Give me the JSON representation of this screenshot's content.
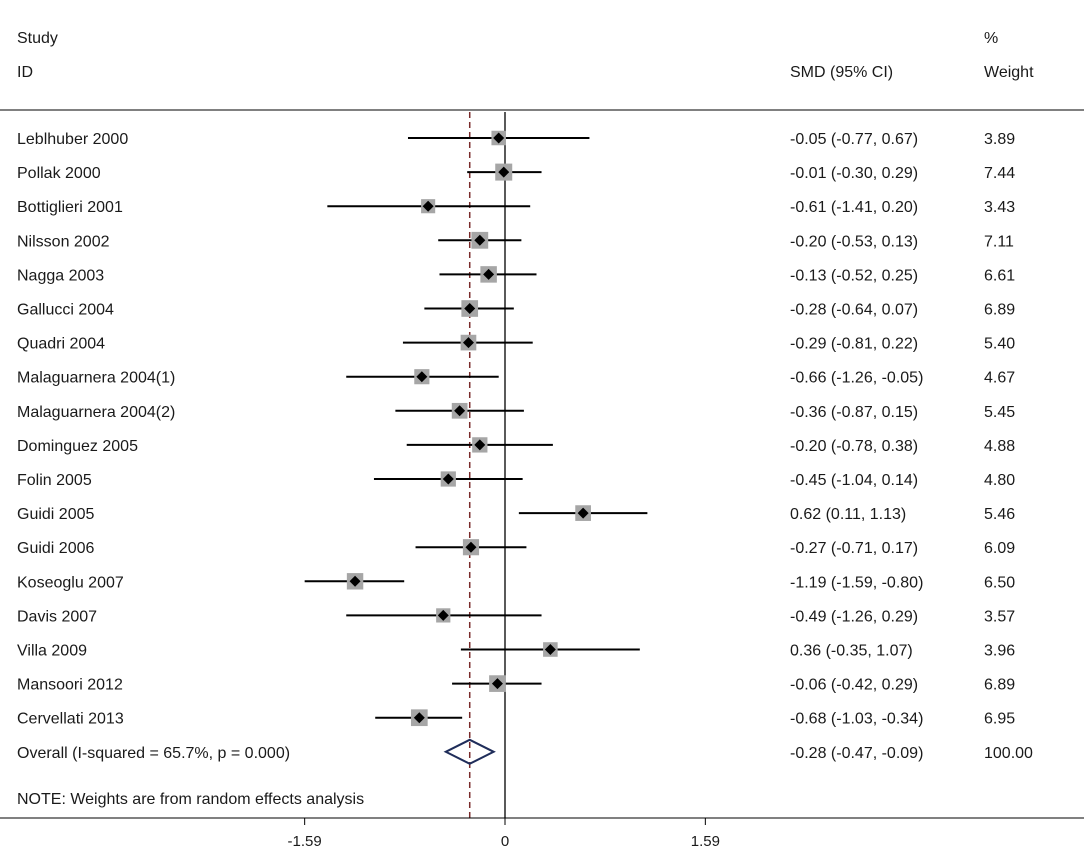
{
  "chart_data": {
    "type": "forest",
    "columns": {
      "study_line1": "Study",
      "study_line2": "ID",
      "effect": "SMD (95% CI)",
      "weight_line1": "%",
      "weight_line2": "Weight"
    },
    "studies": [
      {
        "name": "Leblhuber 2000",
        "smd": -0.05,
        "lo": -0.77,
        "hi": 0.67,
        "ci_text": "-0.05 (-0.77, 0.67)",
        "weight": 3.89,
        "weight_text": "3.89"
      },
      {
        "name": "Pollak 2000",
        "smd": -0.01,
        "lo": -0.3,
        "hi": 0.29,
        "ci_text": "-0.01 (-0.30, 0.29)",
        "weight": 7.44,
        "weight_text": "7.44"
      },
      {
        "name": "Bottiglieri 2001",
        "smd": -0.61,
        "lo": -1.41,
        "hi": 0.2,
        "ci_text": "-0.61 (-1.41, 0.20)",
        "weight": 3.43,
        "weight_text": "3.43"
      },
      {
        "name": "Nilsson 2002",
        "smd": -0.2,
        "lo": -0.53,
        "hi": 0.13,
        "ci_text": "-0.20 (-0.53, 0.13)",
        "weight": 7.11,
        "weight_text": "7.11"
      },
      {
        "name": "Nagga 2003",
        "smd": -0.13,
        "lo": -0.52,
        "hi": 0.25,
        "ci_text": "-0.13 (-0.52, 0.25)",
        "weight": 6.61,
        "weight_text": "6.61"
      },
      {
        "name": "Gallucci 2004",
        "smd": -0.28,
        "lo": -0.64,
        "hi": 0.07,
        "ci_text": "-0.28 (-0.64, 0.07)",
        "weight": 6.89,
        "weight_text": "6.89"
      },
      {
        "name": "Quadri 2004",
        "smd": -0.29,
        "lo": -0.81,
        "hi": 0.22,
        "ci_text": "-0.29 (-0.81, 0.22)",
        "weight": 5.4,
        "weight_text": "5.40"
      },
      {
        "name": "Malaguarnera 2004(1)",
        "smd": -0.66,
        "lo": -1.26,
        "hi": -0.05,
        "ci_text": "-0.66 (-1.26, -0.05)",
        "weight": 4.67,
        "weight_text": "4.67"
      },
      {
        "name": "Malaguarnera 2004(2)",
        "smd": -0.36,
        "lo": -0.87,
        "hi": 0.15,
        "ci_text": "-0.36 (-0.87, 0.15)",
        "weight": 5.45,
        "weight_text": "5.45"
      },
      {
        "name": "Dominguez 2005",
        "smd": -0.2,
        "lo": -0.78,
        "hi": 0.38,
        "ci_text": "-0.20 (-0.78, 0.38)",
        "weight": 4.88,
        "weight_text": "4.88"
      },
      {
        "name": "Folin 2005",
        "smd": -0.45,
        "lo": -1.04,
        "hi": 0.14,
        "ci_text": "-0.45 (-1.04, 0.14)",
        "weight": 4.8,
        "weight_text": "4.80"
      },
      {
        "name": "Guidi 2005",
        "smd": 0.62,
        "lo": 0.11,
        "hi": 1.13,
        "ci_text": "0.62 (0.11, 1.13)",
        "weight": 5.46,
        "weight_text": "5.46"
      },
      {
        "name": "Guidi 2006",
        "smd": -0.27,
        "lo": -0.71,
        "hi": 0.17,
        "ci_text": "-0.27 (-0.71, 0.17)",
        "weight": 6.09,
        "weight_text": "6.09"
      },
      {
        "name": "Koseoglu 2007",
        "smd": -1.19,
        "lo": -1.59,
        "hi": -0.8,
        "ci_text": "-1.19 (-1.59, -0.80)",
        "weight": 6.5,
        "weight_text": "6.50"
      },
      {
        "name": "Davis 2007",
        "smd": -0.49,
        "lo": -1.26,
        "hi": 0.29,
        "ci_text": "-0.49 (-1.26, 0.29)",
        "weight": 3.57,
        "weight_text": "3.57"
      },
      {
        "name": "Villa 2009",
        "smd": 0.36,
        "lo": -0.35,
        "hi": 1.07,
        "ci_text": "0.36 (-0.35, 1.07)",
        "weight": 3.96,
        "weight_text": "3.96"
      },
      {
        "name": "Mansoori 2012",
        "smd": -0.06,
        "lo": -0.42,
        "hi": 0.29,
        "ci_text": "-0.06 (-0.42, 0.29)",
        "weight": 6.89,
        "weight_text": "6.89"
      },
      {
        "name": "Cervellati 2013",
        "smd": -0.68,
        "lo": -1.03,
        "hi": -0.34,
        "ci_text": "-0.68 (-1.03, -0.34)",
        "weight": 6.95,
        "weight_text": "6.95"
      }
    ],
    "overall": {
      "label": "Overall  (I-squared = 65.7%, p = 0.000)",
      "smd": -0.28,
      "lo": -0.47,
      "hi": -0.09,
      "ci_text": "-0.28 (-0.47, -0.09)",
      "weight_text": "100.00"
    },
    "note": "NOTE: Weights are from random effects analysis",
    "xlim": [
      -1.97,
      2.2
    ],
    "ticks": [
      {
        "value": -1.59,
        "label": "-1.59"
      },
      {
        "value": 0,
        "label": "0"
      },
      {
        "value": 1.59,
        "label": "1.59"
      }
    ],
    "null_line": 0,
    "pooled_line": -0.28,
    "colors": {
      "marker": "#000000",
      "weight_box": "#a6a6a6",
      "pooled_line": "#7a2b2b",
      "diamond_stroke": "#1f2d5a",
      "text": "#1a1a1a"
    }
  }
}
